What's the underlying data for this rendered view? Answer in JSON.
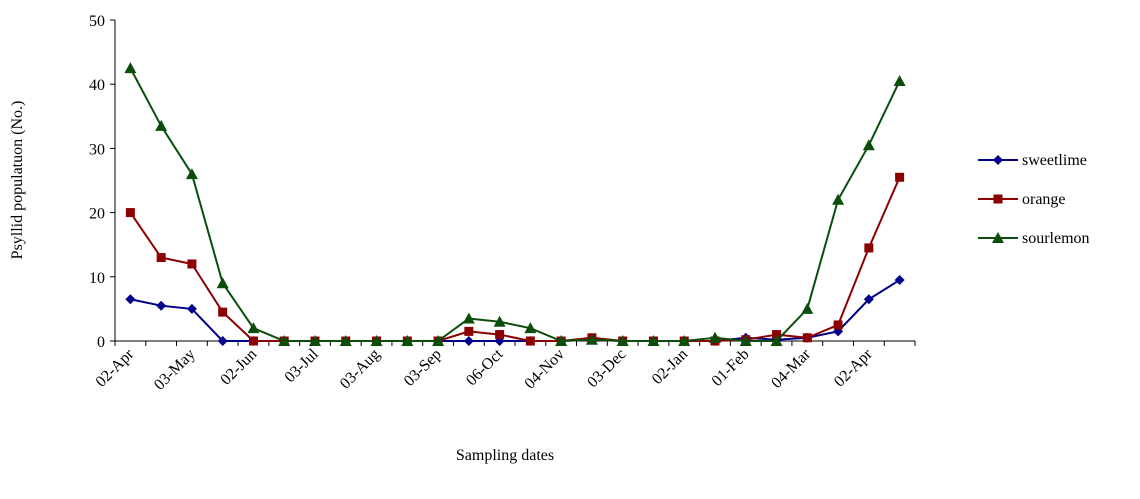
{
  "chart_data": {
    "type": "line",
    "y_label": "Psyllid populatuon  (No.)",
    "x_label": "Sampling dates",
    "categories": [
      "02-Apr",
      null,
      "03-May",
      null,
      "02-Jun",
      null,
      "03-Jul",
      null,
      "03-Aug",
      null,
      "03-Sep",
      null,
      "06-Oct",
      null,
      "04-Nov",
      null,
      "03-Dec",
      null,
      "02-Jan",
      null,
      "01-Feb",
      null,
      "04-Mar",
      null,
      "02-Apr",
      null
    ],
    "series": [
      {
        "name": "sweetlime",
        "color": "#00008b",
        "marker": "diamond",
        "values": [
          6.5,
          5.5,
          5,
          0,
          0,
          0,
          0,
          0,
          0,
          0,
          0,
          0,
          0,
          0,
          0,
          0.2,
          0,
          0,
          0,
          0,
          0.5,
          0.2,
          0.5,
          1.5,
          6.5,
          9.5
        ]
      },
      {
        "name": "orange",
        "color": "#8b0000",
        "marker": "square",
        "values": [
          20,
          13,
          12,
          4.5,
          0,
          0,
          0,
          0,
          0,
          0,
          0,
          1.5,
          1,
          0,
          0,
          0.5,
          0,
          0,
          0,
          0,
          0.2,
          1,
          0.5,
          2.5,
          14.5,
          25.5
        ]
      },
      {
        "name": "sourlemon",
        "color": "#0b4d0b",
        "marker": "triangle",
        "values": [
          42.5,
          33.5,
          26,
          9,
          2,
          0,
          0,
          0,
          0,
          0,
          0,
          3.5,
          3,
          2,
          0,
          0.2,
          0,
          0,
          0,
          0.5,
          0,
          0,
          5,
          22,
          30.5,
          40.5
        ]
      }
    ],
    "ylim": [
      0,
      50
    ],
    "yticks": [
      0,
      10,
      20,
      30,
      40,
      50
    ],
    "legend": "right"
  }
}
